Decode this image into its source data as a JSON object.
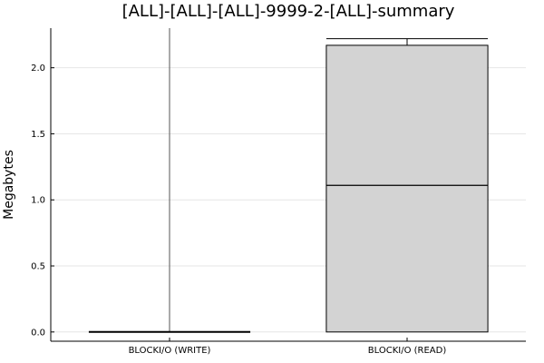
{
  "chart_data": {
    "type": "box",
    "title": "[ALL]-[ALL]-[ALL]-9999-2-[ALL]-summary",
    "xlabel": "",
    "ylabel": "Megabytes",
    "categories": [
      "BLOCKI/O (WRITE)",
      "BLOCKI/O (READ)"
    ],
    "ylim": [
      -0.07,
      2.3
    ],
    "yticks": [
      0.0,
      0.5,
      1.0,
      1.5,
      2.0
    ],
    "ytick_labels": [
      "0.0",
      "0.5",
      "1.0",
      "1.5",
      "2.0"
    ],
    "grid": true,
    "legend": "none",
    "boxes": [
      {
        "category": "BLOCKI/O (WRITE)",
        "whisker_low": 0.0,
        "q1": 0.0,
        "median": 0.0,
        "q3": 0.0,
        "whisker_high": 2.3
      },
      {
        "category": "BLOCKI/O (READ)",
        "whisker_low": 0.0,
        "q1": 0.0,
        "median": 1.11,
        "q3": 2.17,
        "whisker_high": 2.22
      }
    ],
    "colors": {
      "box_fill": "#d3d3d3",
      "box_stroke": "#000000",
      "grid": "#e6e6e6"
    }
  }
}
